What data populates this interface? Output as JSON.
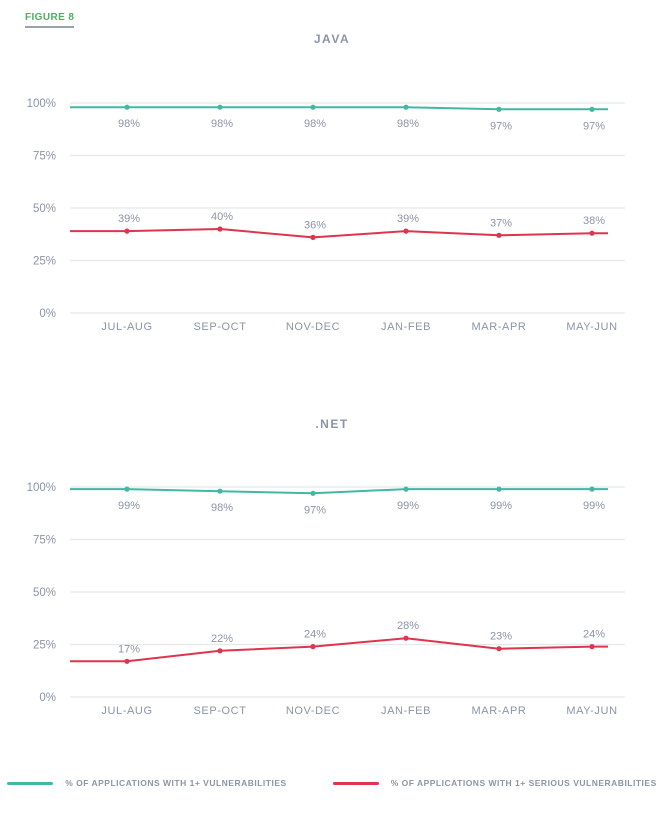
{
  "figure_label": "FIGURE 8",
  "colors": {
    "teal": "#42b8a3",
    "red": "#e0344e",
    "text": "#8b95a7",
    "grid": "#e5e7ea",
    "figure_label_green": "#4caf63"
  },
  "legend": {
    "items": [
      {
        "label": "% OF APPLICATIONS WITH 1+ VULNERABILITIES",
        "color": "teal"
      },
      {
        "label": "% OF APPLICATIONS WITH 1+ SERIOUS VULNERABILITIES",
        "color": "red"
      }
    ]
  },
  "chart_data": [
    {
      "type": "line",
      "title": "JAVA",
      "categories": [
        "JUL-AUG",
        "SEP-OCT",
        "NOV-DEC",
        "JAN-FEB",
        "MAR-APR",
        "MAY-JUN"
      ],
      "ylim": [
        0,
        100
      ],
      "y_ticks": [
        "100%",
        "75%",
        "50%",
        "25%",
        "0%"
      ],
      "grid": true,
      "legend_position": "bottom",
      "series": [
        {
          "name": "% OF APPLICATIONS WITH 1+ VULNERABILITIES",
          "color": "teal",
          "values": [
            98,
            98,
            98,
            98,
            97,
            97
          ],
          "labels": [
            "98%",
            "98%",
            "98%",
            "98%",
            "97%",
            "97%"
          ],
          "label_position": "below"
        },
        {
          "name": "% OF APPLICATIONS WITH 1+ SERIOUS VULNERABILITIES",
          "color": "red",
          "values": [
            39,
            40,
            36,
            39,
            37,
            38
          ],
          "labels": [
            "39%",
            "40%",
            "36%",
            "39%",
            "37%",
            "38%"
          ],
          "label_position": "above"
        }
      ]
    },
    {
      "type": "line",
      "title": ".NET",
      "categories": [
        "JUL-AUG",
        "SEP-OCT",
        "NOV-DEC",
        "JAN-FEB",
        "MAR-APR",
        "MAY-JUN"
      ],
      "ylim": [
        0,
        100
      ],
      "y_ticks": [
        "100%",
        "75%",
        "50%",
        "25%",
        "0%"
      ],
      "grid": true,
      "legend_position": "bottom",
      "series": [
        {
          "name": "% OF APPLICATIONS WITH 1+ VULNERABILITIES",
          "color": "teal",
          "values": [
            99,
            98,
            97,
            99,
            99,
            99
          ],
          "labels": [
            "99%",
            "98%",
            "97%",
            "99%",
            "99%",
            "99%"
          ],
          "label_position": "below"
        },
        {
          "name": "% OF APPLICATIONS WITH 1+ SERIOUS VULNERABILITIES",
          "color": "red",
          "values": [
            17,
            22,
            24,
            28,
            23,
            24
          ],
          "labels": [
            "17%",
            "22%",
            "24%",
            "28%",
            "23%",
            "24%"
          ],
          "label_position": "above"
        }
      ]
    }
  ]
}
